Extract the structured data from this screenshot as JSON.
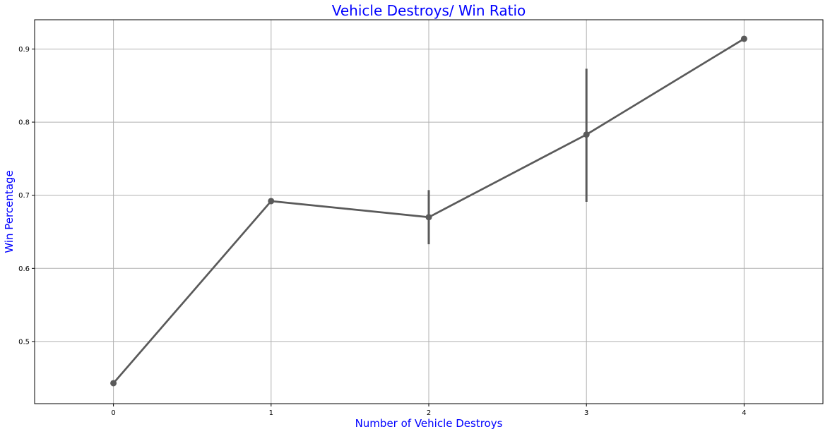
{
  "chart_data": {
    "type": "line",
    "title": "Vehicle Destroys/ Win Ratio",
    "xlabel": "Number of Vehicle Destroys",
    "ylabel": "Win Percentage",
    "categories": [
      "0",
      "1",
      "2",
      "3",
      "4"
    ],
    "series": [
      {
        "values": [
          0.443,
          0.692,
          0.67,
          0.783,
          0.914
        ],
        "error_low": [
          0.443,
          0.688,
          0.633,
          0.691,
          0.914
        ],
        "error_high": [
          0.443,
          0.695,
          0.707,
          0.873,
          0.914
        ]
      }
    ],
    "xlim": [
      -0.5,
      4.5
    ],
    "ylim": [
      0.415,
      0.94
    ],
    "yticks": [
      0.5,
      0.6,
      0.7,
      0.8,
      0.9
    ],
    "ytick_labels": [
      "0.5",
      "0.6",
      "0.7",
      "0.8",
      "0.9"
    ],
    "grid": true,
    "colors": {
      "title": "#0000ff",
      "axis_label": "#0000ff",
      "line": "#5a5a5a",
      "grid": "#b0b0b0",
      "frame": "#000000"
    }
  }
}
